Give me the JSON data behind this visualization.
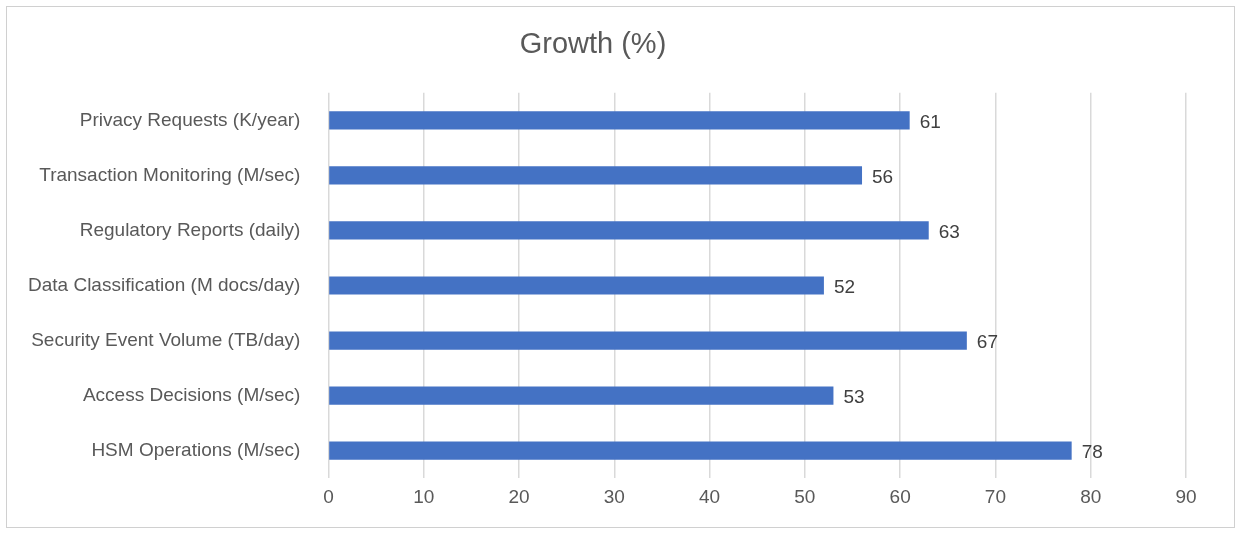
{
  "chart_data": {
    "type": "bar",
    "orientation": "horizontal",
    "title": "Growth (%)",
    "categories": [
      "Privacy Requests (K/year)",
      "Transaction Monitoring (M/sec)",
      "Regulatory Reports (daily)",
      "Data Classification (M docs/day)",
      "Security Event Volume (TB/day)",
      "Access Decisions (M/sec)",
      "HSM Operations (M/sec)"
    ],
    "values": [
      61,
      56,
      63,
      52,
      67,
      53,
      78
    ],
    "color": "#4472c4",
    "xlim": [
      0,
      90
    ],
    "xticks": [
      0,
      10,
      20,
      30,
      40,
      50,
      60,
      70,
      80,
      90
    ],
    "grid": "x",
    "data_labels": true,
    "legend": false
  }
}
